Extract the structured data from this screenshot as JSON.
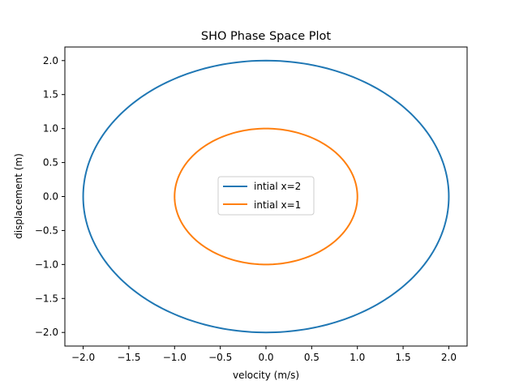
{
  "chart_data": {
    "type": "line",
    "title": "SHO Phase Space Plot",
    "xlabel": "velocity (m/s)",
    "ylabel": "displacement (m)",
    "xlim": [
      -2.2,
      2.2
    ],
    "ylim": [
      -2.2,
      2.2
    ],
    "xticks": [
      -2.0,
      -1.5,
      -1.0,
      -0.5,
      0.0,
      0.5,
      1.0,
      1.5,
      2.0
    ],
    "yticks": [
      -2.0,
      -1.5,
      -1.0,
      -0.5,
      0.0,
      0.5,
      1.0,
      1.5,
      2.0
    ],
    "xtick_labels": [
      "−2.0",
      "−1.5",
      "−1.0",
      "−0.5",
      "0.0",
      "0.5",
      "1.0",
      "1.5",
      "2.0"
    ],
    "ytick_labels": [
      "−2.0",
      "−1.5",
      "−1.0",
      "−0.5",
      "0.0",
      "0.5",
      "1.0",
      "1.5",
      "2.0"
    ],
    "grid": false,
    "legend_position": "center",
    "series": [
      {
        "name": "intial x=2",
        "color": "#1f77b4",
        "x": [
          0.0,
          1.414,
          2.0,
          1.414,
          0.0,
          -1.414,
          -2.0,
          -1.414,
          0.0
        ],
        "y": [
          2.0,
          1.414,
          0.0,
          -1.414,
          -2.0,
          -1.414,
          0.0,
          1.414,
          2.0
        ]
      },
      {
        "name": "intial x=1",
        "color": "#ff7f0e",
        "x": [
          0.0,
          0.707,
          1.0,
          0.707,
          0.0,
          -0.707,
          -1.0,
          -0.707,
          0.0
        ],
        "y": [
          1.0,
          0.707,
          0.0,
          -0.707,
          -1.0,
          -0.707,
          0.0,
          0.707,
          1.0
        ]
      }
    ]
  }
}
